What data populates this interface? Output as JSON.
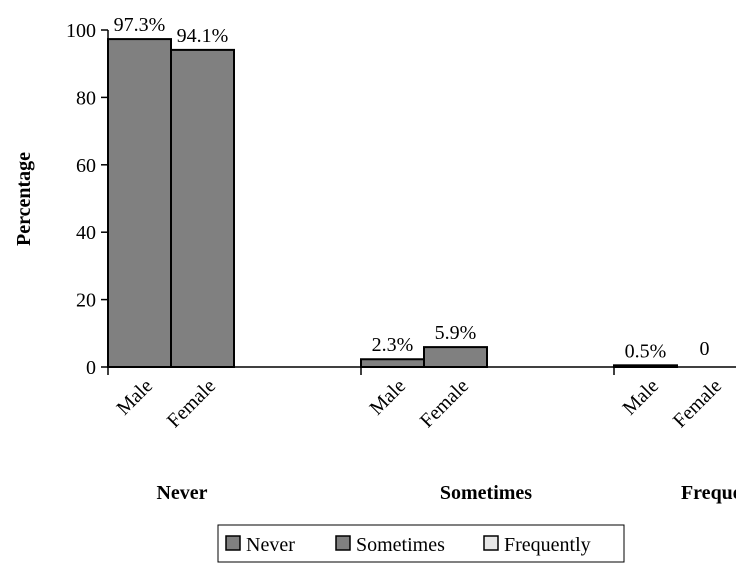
{
  "chart_data": {
    "type": "bar",
    "ylabel": "Percentage",
    "ylim": [
      0,
      100
    ],
    "yticks": [
      0,
      20,
      40,
      60,
      80,
      100
    ],
    "grid": false,
    "legend_position": "bottom",
    "groups": [
      {
        "name": "Never",
        "bars": [
          {
            "label": "Male",
            "value": 97.3,
            "data_label": "97.3%"
          },
          {
            "label": "Female",
            "value": 94.1,
            "data_label": "94.1%"
          }
        ]
      },
      {
        "name": "Sometimes",
        "bars": [
          {
            "label": "Male",
            "value": 2.3,
            "data_label": "2.3%"
          },
          {
            "label": "Female",
            "value": 5.9,
            "data_label": "5.9%"
          }
        ]
      },
      {
        "name": "Frequently",
        "bars": [
          {
            "label": "Male",
            "value": 0.5,
            "data_label": "0.5%"
          },
          {
            "label": "Female",
            "value": 0,
            "data_label": "0"
          }
        ]
      }
    ],
    "legend": [
      {
        "name": "Never",
        "color": "#808080"
      },
      {
        "name": "Sometimes",
        "color": "#808080"
      },
      {
        "name": "Frequently",
        "color": "#e6e6e6"
      }
    ],
    "bar_color": "#808080"
  }
}
